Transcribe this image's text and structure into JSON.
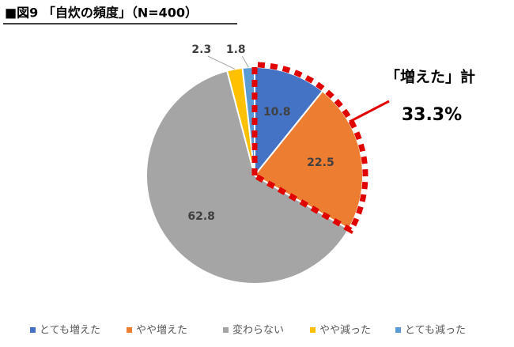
{
  "chart_data": {
    "type": "pie",
    "title": "■図9 「自炊の頻度」（N=400）",
    "categories": [
      "とても増えた",
      "やや増えた",
      "変わらない",
      "やや減った",
      "とても減った"
    ],
    "values": [
      10.8,
      22.5,
      62.8,
      2.3,
      1.8
    ],
    "colors": [
      "#4472c4",
      "#ed7d31",
      "#a5a5a5",
      "#ffc000",
      "#5b9bd5"
    ],
    "legend": "bottom",
    "annotations": [
      {
        "label": "「増えた」計",
        "value": "33.3%"
      }
    ]
  }
}
